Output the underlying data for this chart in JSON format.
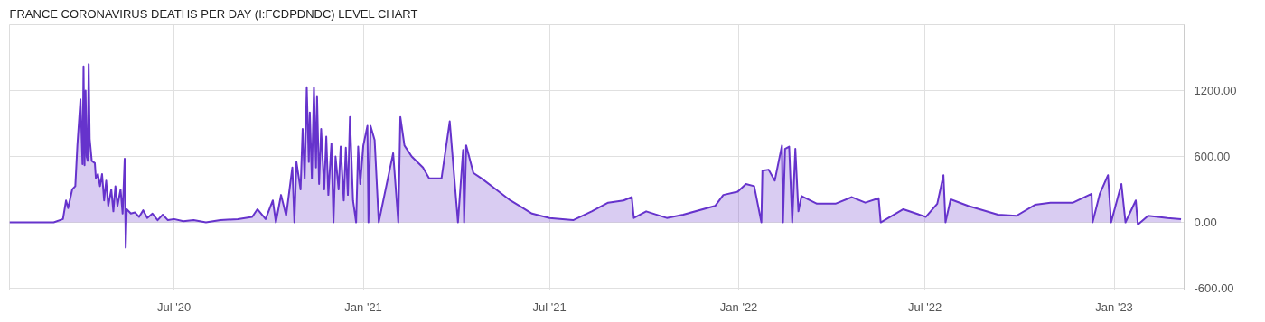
{
  "chart_data": {
    "type": "area",
    "title": "FRANCE CORONAVIRUS DEATHS PER DAY (I:FCDPDNDC) LEVEL CHART",
    "x": [
      "2020-01-23",
      "2020-03-06",
      "2020-03-15",
      "2020-03-18",
      "2020-03-20",
      "2020-03-24",
      "2020-03-27",
      "2020-03-29",
      "2020-04-01",
      "2020-04-03",
      "2020-04-04",
      "2020-04-05",
      "2020-04-06",
      "2020-04-07",
      "2020-04-08",
      "2020-04-09",
      "2020-04-10",
      "2020-04-12",
      "2020-04-15",
      "2020-04-16",
      "2020-04-18",
      "2020-04-20",
      "2020-04-22",
      "2020-04-24",
      "2020-04-26",
      "2020-04-28",
      "2020-05-01",
      "2020-05-03",
      "2020-05-05",
      "2020-05-07",
      "2020-05-10",
      "2020-05-12",
      "2020-05-14",
      "2020-05-15",
      "2020-05-16",
      "2020-05-20",
      "2020-05-24",
      "2020-05-28",
      "2020-06-01",
      "2020-06-05",
      "2020-06-10",
      "2020-06-15",
      "2020-06-20",
      "2020-06-25",
      "2020-07-01",
      "2020-07-10",
      "2020-07-20",
      "2020-08-01",
      "2020-08-15",
      "2020-09-01",
      "2020-09-15",
      "2020-09-20",
      "2020-09-28",
      "2020-10-05",
      "2020-10-08",
      "2020-10-13",
      "2020-10-18",
      "2020-10-24",
      "2020-10-26",
      "2020-10-28",
      "2020-11-01",
      "2020-11-03",
      "2020-11-05",
      "2020-11-07",
      "2020-11-09",
      "2020-11-10",
      "2020-11-12",
      "2020-11-14",
      "2020-11-16",
      "2020-11-17",
      "2020-11-19",
      "2020-11-21",
      "2020-11-24",
      "2020-11-26",
      "2020-11-28",
      "2020-12-01",
      "2020-12-03",
      "2020-12-05",
      "2020-12-08",
      "2020-12-10",
      "2020-12-13",
      "2020-12-15",
      "2020-12-17",
      "2020-12-19",
      "2020-12-22",
      "2020-12-25",
      "2020-12-27",
      "2020-12-29",
      "2021-01-01",
      "2021-01-05",
      "2021-01-06",
      "2021-01-08",
      "2021-01-12",
      "2021-01-16",
      "2021-01-30",
      "2021-02-04",
      "2021-02-06",
      "2021-02-10",
      "2021-02-17",
      "2021-02-28",
      "2021-03-06",
      "2021-03-18",
      "2021-03-26",
      "2021-04-03",
      "2021-04-08",
      "2021-04-09",
      "2021-04-11",
      "2021-04-18",
      "2021-04-26",
      "2021-05-10",
      "2021-05-24",
      "2021-06-02",
      "2021-06-14",
      "2021-07-01",
      "2021-07-24",
      "2021-08-11",
      "2021-08-27",
      "2021-09-11",
      "2021-09-19",
      "2021-09-21",
      "2021-10-03",
      "2021-10-23",
      "2021-11-08",
      "2021-12-09",
      "2021-12-17",
      "2021-12-31",
      "2022-01-08",
      "2022-01-16",
      "2022-01-23",
      "2022-01-24",
      "2022-01-30",
      "2022-02-05",
      "2022-02-12",
      "2022-02-13",
      "2022-02-15",
      "2022-02-19",
      "2022-02-22",
      "2022-02-25",
      "2022-02-28",
      "2022-03-03",
      "2022-03-18",
      "2022-04-05",
      "2022-04-21",
      "2022-05-04",
      "2022-05-17",
      "2022-05-19",
      "2022-06-10",
      "2022-07-02",
      "2022-07-13",
      "2022-07-19",
      "2022-07-21",
      "2022-07-26",
      "2022-08-12",
      "2022-09-10",
      "2022-09-28",
      "2022-10-16",
      "2022-10-31",
      "2022-11-22",
      "2022-12-10",
      "2022-12-11",
      "2022-12-18",
      "2022-12-26",
      "2022-12-29",
      "2023-01-08",
      "2023-01-12",
      "2023-01-22",
      "2023-01-24",
      "2023-02-03",
      "2023-02-22",
      "2023-03-07"
    ],
    "series": [
      {
        "color": "#6633cc",
        "values": [
          0,
          0,
          30,
          200,
          130,
          300,
          330,
          700,
          1120,
          530,
          1420,
          520,
          1200,
          600,
          560,
          1440,
          760,
          560,
          540,
          400,
          440,
          330,
          440,
          200,
          380,
          150,
          300,
          100,
          330,
          150,
          300,
          80,
          580,
          -230,
          120,
          80,
          90,
          50,
          110,
          40,
          80,
          20,
          70,
          20,
          30,
          10,
          20,
          0,
          20,
          30,
          50,
          120,
          30,
          200,
          0,
          250,
          60,
          500,
          0,
          550,
          300,
          850,
          400,
          1230,
          550,
          1000,
          400,
          1230,
          500,
          1150,
          350,
          850,
          300,
          780,
          250,
          720,
          0,
          600,
          300,
          690,
          200,
          680,
          250,
          960,
          200,
          0,
          690,
          350,
          700,
          880,
          0,
          880,
          750,
          0,
          630,
          0,
          960,
          700,
          600,
          500,
          400,
          400,
          920,
          0,
          660,
          0,
          700,
          450,
          400,
          300,
          200,
          150,
          80,
          40,
          20,
          100,
          180,
          200,
          230,
          40,
          100,
          40,
          70,
          150,
          250,
          280,
          350,
          330,
          0,
          470,
          480,
          380,
          700,
          0,
          670,
          690,
          0,
          670,
          100,
          240,
          170,
          170,
          230,
          180,
          220,
          0,
          120,
          50,
          170,
          430,
          0,
          210,
          150,
          70,
          60,
          160,
          180,
          180,
          260,
          0,
          260,
          430,
          0,
          350,
          0,
          200,
          -20,
          60,
          40,
          30
        ]
      }
    ],
    "xlim": [
      "2020-01-23",
      "2023-03-10"
    ],
    "xticks": [
      {
        "value": "2020-07-01",
        "label": "Jul '20"
      },
      {
        "value": "2021-01-01",
        "label": "Jan '21"
      },
      {
        "value": "2021-07-01",
        "label": "Jul '21"
      },
      {
        "value": "2022-01-01",
        "label": "Jan '22"
      },
      {
        "value": "2022-07-01",
        "label": "Jul '22"
      },
      {
        "value": "2023-01-01",
        "label": "Jan '23"
      }
    ],
    "ylim": [
      -616,
      1800
    ],
    "yticks": [
      {
        "value": -600,
        "label": "-600.00"
      },
      {
        "value": 0,
        "label": "0.00"
      },
      {
        "value": 600,
        "label": "600.00"
      },
      {
        "value": 1200,
        "label": "1200.00"
      }
    ],
    "grid": true
  }
}
